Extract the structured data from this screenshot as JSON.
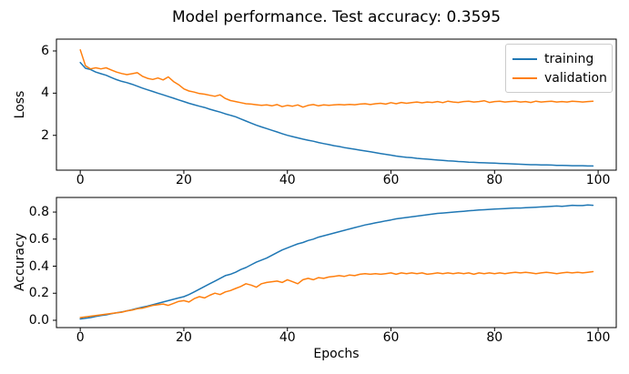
{
  "figure": {
    "title": "Model performance. Test accuracy: 0.3595",
    "test_accuracy": "0.3595"
  },
  "colors": {
    "training": "#1f77b4",
    "validation": "#ff7f0e",
    "axis": "#000000",
    "legend_border": "#cccccc"
  },
  "legend": {
    "position": "upper right",
    "entries": [
      "training",
      "validation"
    ]
  },
  "chart_data": [
    {
      "type": "line",
      "ylabel": "Loss",
      "xlabel": "",
      "xlim": [
        -4.6,
        103.5
      ],
      "ylim": [
        0.35,
        6.56
      ],
      "xticks": [
        0,
        20,
        40,
        60,
        80,
        100
      ],
      "xtick_labels": [
        "0",
        "20",
        "40",
        "60",
        "80",
        "100"
      ],
      "yticks": [
        2,
        4,
        6
      ],
      "ytick_labels": [
        "2",
        "4",
        "6"
      ],
      "grid": false,
      "legend_position": "upper right",
      "x_start": 0,
      "series": [
        {
          "name": "training",
          "color": "#1f77b4",
          "values": [
            5.45,
            5.18,
            5.12,
            5.0,
            4.92,
            4.85,
            4.74,
            4.64,
            4.56,
            4.5,
            4.42,
            4.33,
            4.24,
            4.16,
            4.08,
            4.0,
            3.92,
            3.84,
            3.76,
            3.68,
            3.6,
            3.52,
            3.45,
            3.38,
            3.32,
            3.24,
            3.17,
            3.1,
            3.02,
            2.95,
            2.88,
            2.78,
            2.68,
            2.58,
            2.48,
            2.4,
            2.32,
            2.24,
            2.16,
            2.08,
            2.0,
            1.94,
            1.88,
            1.82,
            1.77,
            1.72,
            1.66,
            1.61,
            1.56,
            1.51,
            1.47,
            1.42,
            1.38,
            1.34,
            1.3,
            1.26,
            1.22,
            1.18,
            1.14,
            1.1,
            1.06,
            1.02,
            0.99,
            0.96,
            0.94,
            0.91,
            0.89,
            0.87,
            0.85,
            0.83,
            0.81,
            0.79,
            0.78,
            0.76,
            0.75,
            0.73,
            0.72,
            0.71,
            0.7,
            0.69,
            0.68,
            0.67,
            0.66,
            0.65,
            0.64,
            0.63,
            0.62,
            0.61,
            0.61,
            0.6,
            0.6,
            0.59,
            0.58,
            0.58,
            0.57,
            0.56,
            0.56,
            0.56,
            0.55,
            0.55
          ]
        },
        {
          "name": "validation",
          "color": "#ff7f0e",
          "values": [
            6.05,
            5.3,
            5.15,
            5.2,
            5.15,
            5.2,
            5.1,
            5.0,
            4.93,
            4.88,
            4.92,
            4.97,
            4.8,
            4.7,
            4.65,
            4.72,
            4.63,
            4.77,
            4.55,
            4.4,
            4.2,
            4.1,
            4.05,
            3.98,
            3.95,
            3.9,
            3.85,
            3.92,
            3.75,
            3.65,
            3.6,
            3.55,
            3.5,
            3.48,
            3.45,
            3.42,
            3.44,
            3.4,
            3.46,
            3.36,
            3.42,
            3.38,
            3.44,
            3.34,
            3.42,
            3.46,
            3.4,
            3.44,
            3.42,
            3.44,
            3.46,
            3.44,
            3.47,
            3.45,
            3.48,
            3.5,
            3.46,
            3.5,
            3.52,
            3.48,
            3.55,
            3.5,
            3.56,
            3.52,
            3.55,
            3.58,
            3.54,
            3.58,
            3.56,
            3.6,
            3.55,
            3.62,
            3.58,
            3.56,
            3.6,
            3.62,
            3.58,
            3.6,
            3.64,
            3.56,
            3.6,
            3.62,
            3.58,
            3.6,
            3.62,
            3.58,
            3.6,
            3.56,
            3.62,
            3.58,
            3.6,
            3.62,
            3.58,
            3.6,
            3.58,
            3.62,
            3.6,
            3.58,
            3.6,
            3.62
          ]
        }
      ]
    },
    {
      "type": "line",
      "ylabel": "Accuracy",
      "xlabel": "Epochs",
      "xlim": [
        -4.6,
        103.5
      ],
      "ylim": [
        -0.054,
        0.908
      ],
      "xticks": [
        0,
        20,
        40,
        60,
        80,
        100
      ],
      "xtick_labels": [
        "0",
        "20",
        "40",
        "60",
        "80",
        "100"
      ],
      "yticks": [
        0.0,
        0.2,
        0.4,
        0.6,
        0.8
      ],
      "ytick_labels": [
        "0.0",
        "0.2",
        "0.4",
        "0.6",
        "0.8"
      ],
      "grid": false,
      "x_start": 0,
      "series": [
        {
          "name": "training",
          "color": "#1f77b4",
          "values": [
            0.01,
            0.015,
            0.02,
            0.028,
            0.035,
            0.04,
            0.048,
            0.055,
            0.062,
            0.07,
            0.078,
            0.088,
            0.097,
            0.105,
            0.115,
            0.125,
            0.135,
            0.145,
            0.155,
            0.165,
            0.175,
            0.19,
            0.21,
            0.23,
            0.25,
            0.27,
            0.29,
            0.31,
            0.33,
            0.34,
            0.355,
            0.375,
            0.39,
            0.41,
            0.43,
            0.445,
            0.46,
            0.48,
            0.5,
            0.52,
            0.535,
            0.55,
            0.565,
            0.575,
            0.59,
            0.6,
            0.615,
            0.625,
            0.635,
            0.645,
            0.655,
            0.665,
            0.675,
            0.685,
            0.695,
            0.705,
            0.712,
            0.72,
            0.727,
            0.735,
            0.742,
            0.75,
            0.755,
            0.76,
            0.765,
            0.77,
            0.775,
            0.78,
            0.785,
            0.79,
            0.793,
            0.796,
            0.8,
            0.803,
            0.806,
            0.81,
            0.812,
            0.815,
            0.817,
            0.82,
            0.822,
            0.824,
            0.826,
            0.828,
            0.83,
            0.83,
            0.832,
            0.834,
            0.836,
            0.838,
            0.84,
            0.842,
            0.845,
            0.843,
            0.846,
            0.85,
            0.848,
            0.848,
            0.852,
            0.85
          ]
        },
        {
          "name": "validation",
          "color": "#ff7f0e",
          "values": [
            0.02,
            0.025,
            0.03,
            0.035,
            0.04,
            0.045,
            0.05,
            0.055,
            0.06,
            0.07,
            0.075,
            0.085,
            0.09,
            0.1,
            0.11,
            0.115,
            0.12,
            0.11,
            0.125,
            0.14,
            0.145,
            0.135,
            0.16,
            0.175,
            0.165,
            0.185,
            0.2,
            0.19,
            0.21,
            0.22,
            0.235,
            0.25,
            0.27,
            0.26,
            0.245,
            0.27,
            0.28,
            0.285,
            0.29,
            0.28,
            0.3,
            0.285,
            0.27,
            0.3,
            0.31,
            0.3,
            0.315,
            0.31,
            0.32,
            0.325,
            0.33,
            0.325,
            0.335,
            0.33,
            0.34,
            0.345,
            0.34,
            0.345,
            0.34,
            0.345,
            0.35,
            0.34,
            0.35,
            0.345,
            0.35,
            0.345,
            0.35,
            0.34,
            0.345,
            0.35,
            0.345,
            0.35,
            0.345,
            0.35,
            0.345,
            0.35,
            0.34,
            0.35,
            0.345,
            0.35,
            0.345,
            0.35,
            0.345,
            0.35,
            0.355,
            0.35,
            0.355,
            0.35,
            0.345,
            0.35,
            0.355,
            0.35,
            0.345,
            0.35,
            0.355,
            0.35,
            0.355,
            0.35,
            0.355,
            0.36
          ]
        }
      ]
    }
  ]
}
